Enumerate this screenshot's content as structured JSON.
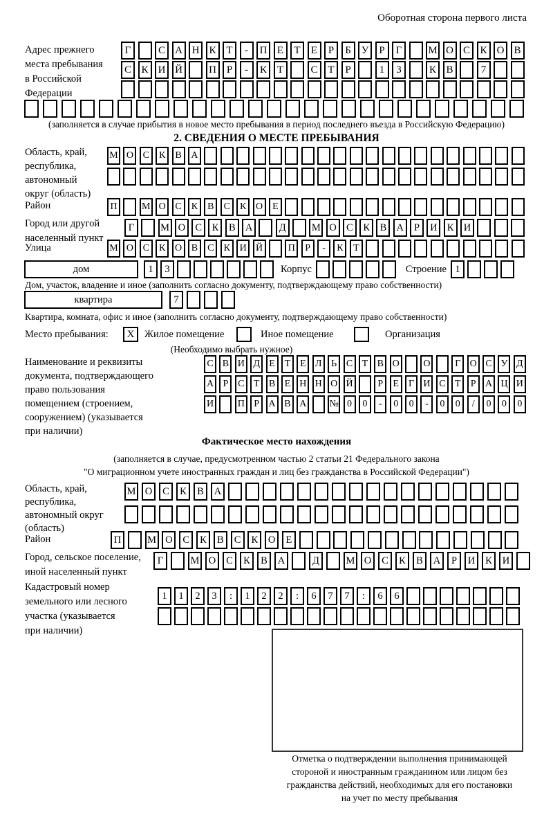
{
  "header_note": "Оборотная сторона первого листа",
  "prev_address": {
    "label_lines": [
      "Адрес прежнего",
      "места пребывания",
      "в Российской",
      "Федерации"
    ],
    "row1": {
      "t": "Г САНКТ-ПЕТЕРБУРГ МОСКОВ",
      "n": 24
    },
    "row2": {
      "t": "СКИЙ ПР-КТ СТР 13 КВ 7",
      "n": 24
    },
    "row3": {
      "t": "",
      "n": 24
    },
    "row4": {
      "t": "",
      "n": 27
    },
    "caption": "(заполняется в случае прибытия в новое место пребывания в период последнего въезда в Российскую Федерацию)"
  },
  "section2": {
    "title": "2. СВЕДЕНИЯ О МЕСТЕ ПРЕБЫВАНИЯ",
    "region_label_lines": [
      "Область, край,",
      "республика,",
      "автономный",
      "округ (область)"
    ],
    "region_row1": {
      "t": "МОСКВА",
      "n": 26
    },
    "region_row2": {
      "t": "",
      "n": 26
    },
    "district_label": "Район",
    "district_row": {
      "t": "П МОСКВСКОЕ",
      "n": 26
    },
    "city_label_lines": [
      "Город или другой",
      "населенный пункт"
    ],
    "city_row": {
      "t": "Г МОСКВА Д МОСКВАРИКИ",
      "n": 24
    },
    "street_label": "Улица",
    "street_row": {
      "t": "МОСКОВСКИЙ ПР-КТ",
      "n": 26
    },
    "house_box_label": "дом",
    "house_cells": {
      "t": "13",
      "n": 8
    },
    "korpus_label": "Корпус",
    "korpus_cells": {
      "t": "",
      "n": 5
    },
    "stroenie_label": "Строение",
    "stroenie_cells": {
      "t": "1",
      "n": 4
    },
    "house_caption": "Дом, участок, владение и иное (заполнить согласно документу, подтверждающему право собственности)",
    "apartment_box_label": "квартира",
    "apartment_cells": {
      "t": "7",
      "n": 4
    },
    "apartment_caption": "Квартира, комната, офис и иное (заполнить согласно документу, подтверждающему право собственности)",
    "stay_label": "Место пребывания:",
    "stay_options": [
      {
        "mark": "X",
        "label": "Жилое помещение"
      },
      {
        "mark": "",
        "label": "Иное помещение"
      },
      {
        "mark": "",
        "label": "Организация"
      }
    ],
    "stay_note": "(Необходимо выбрать нужное)",
    "doc_label_lines": [
      "Наименование и реквизиты",
      "документа, подтверждающего",
      "право пользования",
      "помещением (строением,",
      "сооружением) (указывается",
      "при наличии)"
    ],
    "doc_row1": {
      "t": "СВИДЕТЕЛЬСТВО О ГОСУД",
      "n": 21
    },
    "doc_row2": {
      "t": "АРСТВЕННОЙ РЕГИСТРАЦИ",
      "n": 21
    },
    "doc_row3": {
      "t": "И ПРАВА №00-00-00/000",
      "n": 21
    }
  },
  "actual": {
    "title": "Фактическое место нахождения",
    "caption1": "(заполняется в случае, предусмотренном частью 2 статьи 21 Федерального закона",
    "caption2": "\"О миграционном учете иностранных граждан и лиц без гражданства в Российской Федерации\")",
    "region_label_lines": [
      "Область, край,",
      "республика,",
      "автономный округ",
      "(область)"
    ],
    "region_row1": {
      "t": "МОСКВА",
      "n": 23
    },
    "region_row2": {
      "t": "",
      "n": 23
    },
    "district_label": "Район",
    "district_row": {
      "t": "П МОСКВСКОЕ",
      "n": 24
    },
    "city_label_lines": [
      "Город, сельское поселение,",
      "иной населенный пункт"
    ],
    "city_row": {
      "t": "Г МОСКВА Д МОСКВАРИКИ",
      "n": 22
    },
    "cadastral_label_lines": [
      "Кадастровый номер",
      "земельного или лесного",
      "участка (указывается",
      "при наличии)"
    ],
    "cadastral_row1": {
      "t": "1123:122:677:66",
      "n": 22
    },
    "cadastral_row2": {
      "t": "",
      "n": 22
    },
    "mark_caption_lines": [
      "Отметка о подтверждении выполнения принимающей",
      "стороной и иностранным гражданином или лицом без",
      "гражданства действий, необходимых для его постановки",
      "на учет по месту пребывания"
    ]
  }
}
